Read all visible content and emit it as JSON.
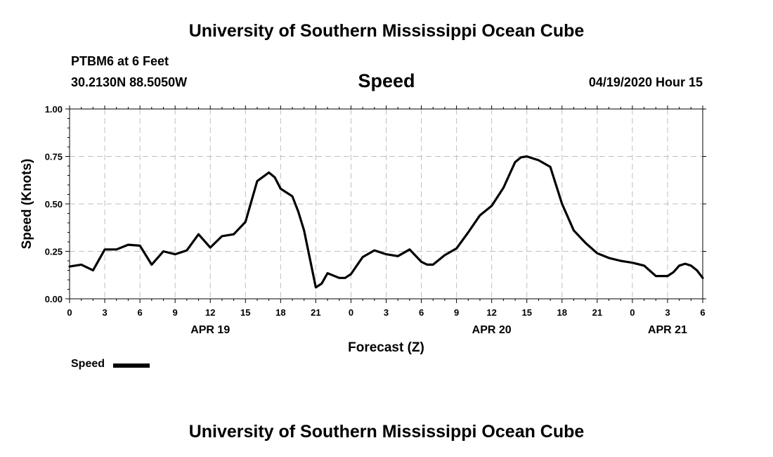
{
  "page": {
    "title_top": "University of Southern Mississippi Ocean Cube",
    "title_bottom": "University of Southern Mississippi Ocean Cube",
    "station": "PTBM6 at 6 Feet",
    "coordinates": "30.2130N 88.5050W",
    "variable": "Speed",
    "datetime": "04/19/2020 Hour 15"
  },
  "colors": {
    "line": "#000000",
    "grid": "#bfbfbf",
    "background": "#ffffff"
  },
  "chart_data": {
    "type": "line",
    "title": "Speed",
    "xlabel": "Forecast (Z)",
    "ylabel": "Speed (Knots)",
    "ylim": [
      0,
      1
    ],
    "yticks": [
      "0.00",
      "0.25",
      "0.50",
      "0.75",
      "1.00"
    ],
    "xlim": [
      0,
      54
    ],
    "x_unit": "hours from 04/19/2020 00Z",
    "xticks": [
      {
        "x": 0,
        "label": "0"
      },
      {
        "x": 3,
        "label": "3"
      },
      {
        "x": 6,
        "label": "6"
      },
      {
        "x": 9,
        "label": "9"
      },
      {
        "x": 12,
        "label": "12"
      },
      {
        "x": 15,
        "label": "15"
      },
      {
        "x": 18,
        "label": "18"
      },
      {
        "x": 21,
        "label": "21"
      },
      {
        "x": 24,
        "label": "0"
      },
      {
        "x": 27,
        "label": "3"
      },
      {
        "x": 30,
        "label": "6"
      },
      {
        "x": 33,
        "label": "9"
      },
      {
        "x": 36,
        "label": "12"
      },
      {
        "x": 39,
        "label": "15"
      },
      {
        "x": 42,
        "label": "18"
      },
      {
        "x": 45,
        "label": "21"
      },
      {
        "x": 48,
        "label": "0"
      },
      {
        "x": 51,
        "label": "3"
      },
      {
        "x": 54,
        "label": "6"
      }
    ],
    "date_labels": [
      {
        "x": 12,
        "label": "APR 19"
      },
      {
        "x": 36,
        "label": "APR 20"
      },
      {
        "x": 51,
        "label": "APR 21"
      }
    ],
    "grid": true,
    "legend": {
      "position": "bottom-left",
      "entries": [
        "Speed"
      ]
    },
    "series": [
      {
        "name": "Speed",
        "x": [
          0,
          1,
          2,
          3,
          4,
          5,
          6,
          7,
          8,
          9,
          10,
          11,
          12,
          13,
          14,
          15,
          16,
          17,
          17.5,
          18,
          19,
          19.5,
          20,
          21,
          21.5,
          22,
          23,
          23.5,
          24,
          25,
          26,
          27,
          28,
          29,
          30,
          30.5,
          31,
          32,
          33,
          34,
          35,
          36,
          37,
          38,
          38.5,
          39,
          40,
          41,
          42,
          43,
          44,
          45,
          46,
          47,
          48,
          49,
          50,
          51,
          51.5,
          52,
          52.5,
          53,
          53.5,
          54
        ],
        "y": [
          0.17,
          0.18,
          0.15,
          0.26,
          0.26,
          0.285,
          0.28,
          0.18,
          0.25,
          0.235,
          0.255,
          0.34,
          0.27,
          0.33,
          0.34,
          0.405,
          0.62,
          0.665,
          0.64,
          0.58,
          0.54,
          0.46,
          0.36,
          0.06,
          0.08,
          0.135,
          0.11,
          0.11,
          0.13,
          0.22,
          0.255,
          0.235,
          0.225,
          0.26,
          0.195,
          0.18,
          0.18,
          0.23,
          0.265,
          0.35,
          0.44,
          0.49,
          0.585,
          0.72,
          0.745,
          0.75,
          0.73,
          0.695,
          0.5,
          0.36,
          0.295,
          0.24,
          0.215,
          0.2,
          0.19,
          0.175,
          0.12,
          0.12,
          0.14,
          0.175,
          0.185,
          0.175,
          0.15,
          0.11
        ]
      }
    ]
  }
}
